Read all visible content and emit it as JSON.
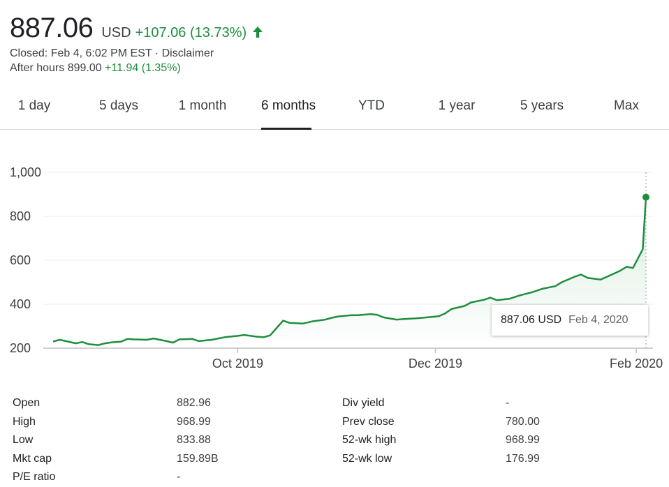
{
  "quote": {
    "price": "887.06",
    "currency": "USD",
    "change": "+107.06 (13.73%)",
    "closed_text": "Closed: Feb 4, 6:02 PM EST · Disclaimer",
    "after_hours_label": "After hours 899.00",
    "after_hours_change": "+11.94 (1.35%)",
    "up_color": "#1e8e3e",
    "arrow_icon": "arrow-up-icon"
  },
  "tabs": [
    {
      "label": "1 day",
      "active": false
    },
    {
      "label": "5 days",
      "active": false
    },
    {
      "label": "1 month",
      "active": false
    },
    {
      "label": "6 months",
      "active": true
    },
    {
      "label": "YTD",
      "active": false
    },
    {
      "label": "1 year",
      "active": false
    },
    {
      "label": "5 years",
      "active": false
    },
    {
      "label": "Max",
      "active": false
    }
  ],
  "chart_data": {
    "type": "area",
    "x_tick_labels": [
      "Oct 2019",
      "Dec 2019",
      "Feb 2020"
    ],
    "y_tick_labels": [
      "1,000",
      "800",
      "600",
      "400",
      "200"
    ],
    "y_ticks": [
      1000,
      800,
      600,
      400,
      200
    ],
    "ylim": [
      200,
      1000
    ],
    "x_range": [
      "2019-08-05",
      "2020-02-04"
    ],
    "x_tick_dates": [
      "2019-10-01",
      "2019-12-01",
      "2020-02-01"
    ],
    "grid": true,
    "line_color": "#1e8e3e",
    "series": [
      {
        "x": [
          "2019-08-05",
          "2019-08-07",
          "2019-08-09",
          "2019-08-12",
          "2019-08-14",
          "2019-08-16",
          "2019-08-19",
          "2019-08-21",
          "2019-08-23",
          "2019-08-26",
          "2019-08-28",
          "2019-08-30",
          "2019-09-03",
          "2019-09-05",
          "2019-09-09",
          "2019-09-11",
          "2019-09-13",
          "2019-09-17",
          "2019-09-19",
          "2019-09-23",
          "2019-09-25",
          "2019-09-27",
          "2019-10-01",
          "2019-10-03",
          "2019-10-07",
          "2019-10-09",
          "2019-10-11",
          "2019-10-15",
          "2019-10-17",
          "2019-10-21",
          "2019-10-23",
          "2019-10-24",
          "2019-10-28",
          "2019-10-30",
          "2019-11-01",
          "2019-11-05",
          "2019-11-07",
          "2019-11-11",
          "2019-11-13",
          "2019-11-15",
          "2019-11-19",
          "2019-11-21",
          "2019-11-25",
          "2019-11-27",
          "2019-12-02",
          "2019-12-04",
          "2019-12-06",
          "2019-12-10",
          "2019-12-12",
          "2019-12-16",
          "2019-12-18",
          "2019-12-20",
          "2019-12-24",
          "2019-12-27",
          "2019-12-31",
          "2020-01-03",
          "2020-01-07",
          "2020-01-09",
          "2020-01-13",
          "2020-01-15",
          "2020-01-17",
          "2020-01-21",
          "2020-01-23",
          "2020-01-27",
          "2020-01-29",
          "2020-01-31",
          "2020-02-03",
          "2020-02-04"
        ],
        "y": [
          230,
          238,
          232,
          222,
          228,
          218,
          214,
          222,
          226,
          230,
          242,
          240,
          238,
          244,
          232,
          225,
          240,
          242,
          232,
          238,
          244,
          250,
          256,
          260,
          252,
          250,
          258,
          325,
          315,
          312,
          318,
          322,
          330,
          338,
          344,
          350,
          350,
          355,
          352,
          340,
          330,
          332,
          336,
          338,
          345,
          358,
          378,
          392,
          408,
          420,
          430,
          418,
          425,
          440,
          455,
          470,
          482,
          500,
          525,
          535,
          520,
          512,
          525,
          552,
          570,
          565,
          650,
          887
        ]
      }
    ],
    "highlight": {
      "x": "2020-02-04",
      "y": 887.06
    }
  },
  "tooltip": {
    "price": "887.06 USD",
    "date": "Feb 4, 2020"
  },
  "stats": {
    "left_labels": [
      "Open",
      "High",
      "Low",
      "Mkt cap",
      "P/E ratio"
    ],
    "left_values": [
      "882.96",
      "968.99",
      "833.88",
      "159.89B",
      "-"
    ],
    "right_labels": [
      "Div yield",
      "Prev close",
      "52-wk high",
      "52-wk low"
    ],
    "right_values": [
      "-",
      "780.00",
      "968.99",
      "176.99"
    ]
  }
}
